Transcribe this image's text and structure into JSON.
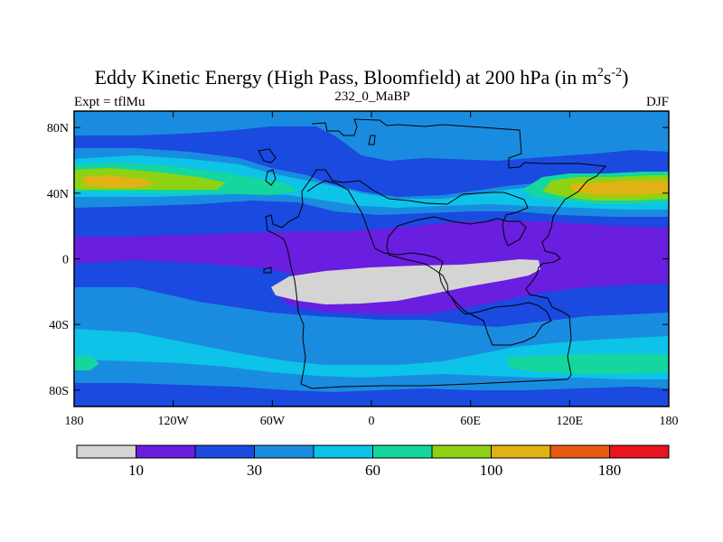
{
  "chart_data": {
    "type": "heatmap",
    "title": "Eddy Kinetic Energy (High Pass, Bloomfield) at 200 hPa (in m",
    "title_sup1": "2",
    "title_mid": "s",
    "title_sup2": "-2",
    "title_end": ")",
    "left_label": "Expt = tflMu",
    "center_label": "232_0_MaBP",
    "right_label": "DJF",
    "x_ticks": [
      "180",
      "120W",
      "60W",
      "0",
      "60E",
      "120E",
      "180"
    ],
    "x_tick_values": [
      -180,
      -120,
      -60,
      0,
      60,
      120,
      180
    ],
    "y_ticks": [
      "80N",
      "40N",
      "0",
      "40S",
      "80S"
    ],
    "y_tick_values": [
      80,
      40,
      0,
      -40,
      -80
    ],
    "xlim": [
      -180,
      180
    ],
    "ylim": [
      -90,
      90
    ],
    "colorbar": {
      "levels": [
        10,
        20,
        30,
        45,
        60,
        80,
        100,
        140,
        180
      ],
      "labels": [
        "10",
        "30",
        "60",
        "100",
        "180"
      ],
      "label_indices": [
        0,
        2,
        4,
        6,
        8
      ],
      "colors": [
        "#d4d4d4",
        "#6a1ee0",
        "#1a4ae0",
        "#1a8ce0",
        "#0dc3e8",
        "#14d69e",
        "#8fd214",
        "#e0b214",
        "#e85a14",
        "#e8141e"
      ]
    },
    "fields": [
      {
        "level": 1,
        "label": "10-20",
        "color": "#6a1ee0"
      },
      {
        "level": 2,
        "label": "20-30",
        "color": "#1a4ae0"
      },
      {
        "level": 3,
        "label": "30-45",
        "color": "#1a8ce0"
      },
      {
        "level": 4,
        "label": "45-60",
        "color": "#0dc3e8"
      },
      {
        "level": 5,
        "label": "60-80",
        "color": "#14d69e"
      },
      {
        "level": 6,
        "label": "80-100",
        "color": "#8fd214"
      },
      {
        "level": 7,
        "label": "100-140",
        "color": "#e0b214"
      }
    ],
    "low_region": {
      "level": 0,
      "label": "<10",
      "color": "#d4d4d4"
    },
    "coastline_color": "#000000"
  }
}
